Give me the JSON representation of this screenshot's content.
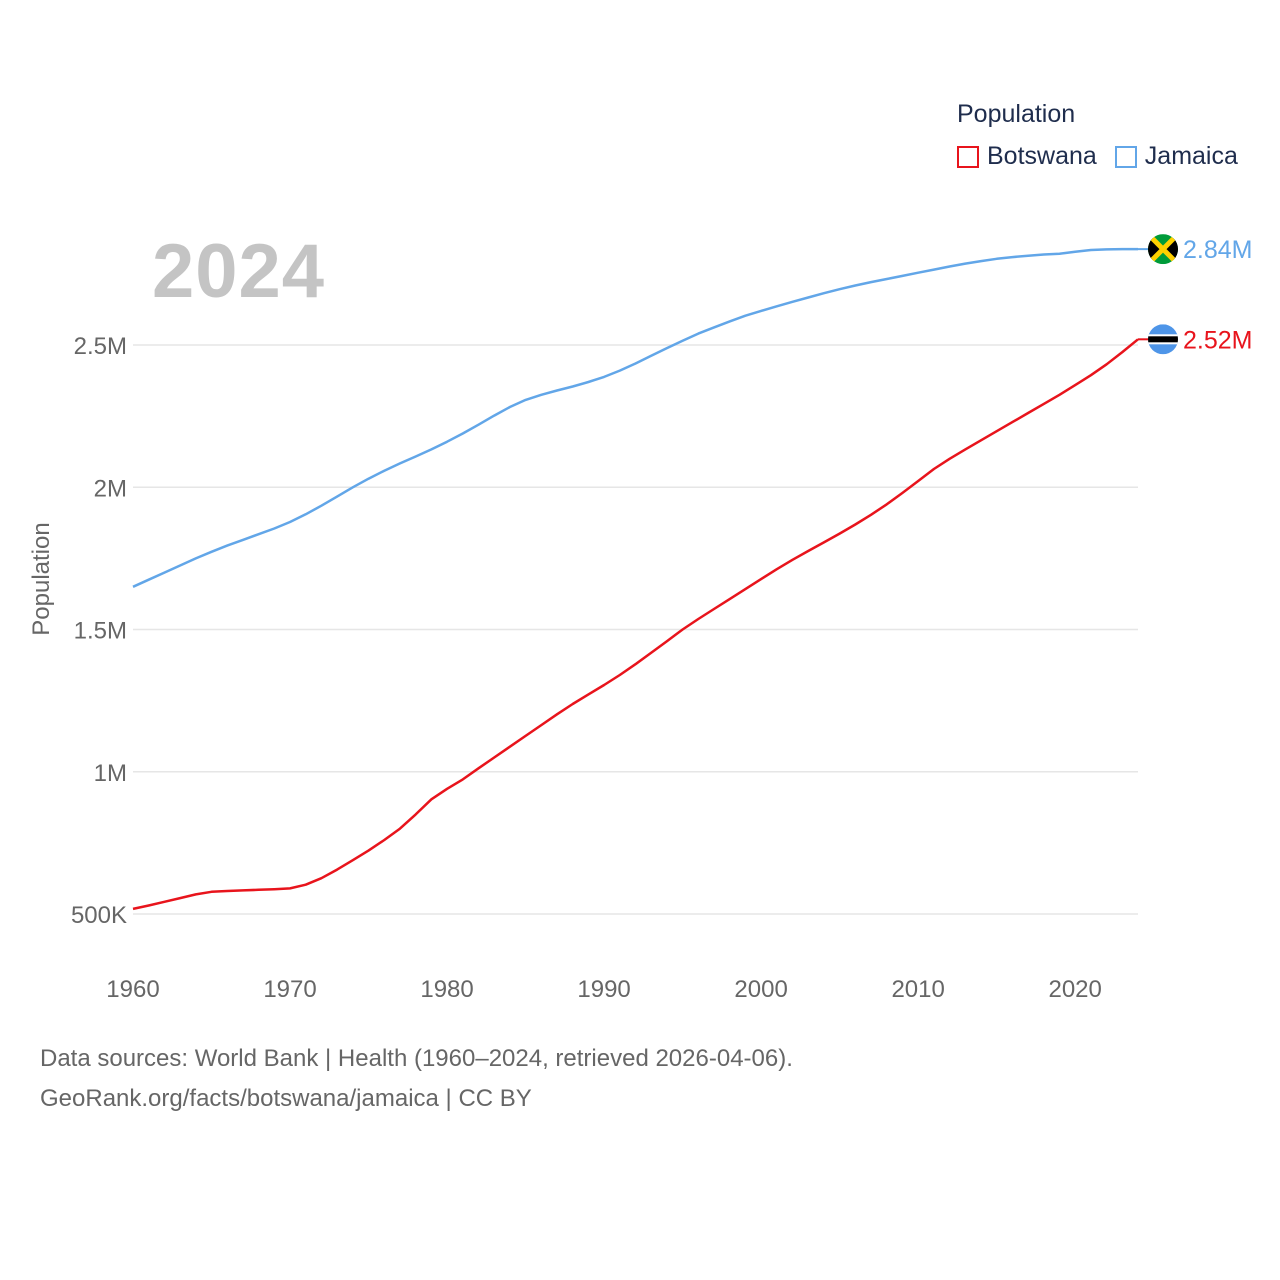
{
  "legend": {
    "title": "Population",
    "items": [
      {
        "name": "Botswana",
        "color": "#e8141c"
      },
      {
        "name": "Jamaica",
        "color": "#62a6e8"
      }
    ]
  },
  "year_label": "2024",
  "footer": {
    "line1": "Data sources: World Bank | Health (1960–2024, retrieved 2026-04-06).",
    "line2": "GeoRank.org/facts/botswana/jamaica | CC BY"
  },
  "chart_data": {
    "type": "line",
    "title": "Population",
    "xlabel": "",
    "ylabel": "Population",
    "xlim": [
      1960,
      2024
    ],
    "ylim": [
      300000,
      2900000
    ],
    "grid": true,
    "x_ticks": [
      1960,
      1970,
      1980,
      1990,
      2000,
      2010,
      2020
    ],
    "x_tick_labels": [
      "1960",
      "1970",
      "1980",
      "1990",
      "2000",
      "2010",
      "2020"
    ],
    "y_ticks": [
      500000,
      1000000,
      1500000,
      2000000,
      2500000
    ],
    "y_tick_labels": [
      "500K",
      "1M",
      "1.5M",
      "2M",
      "2.5M"
    ],
    "x": [
      1960,
      1961,
      1962,
      1963,
      1964,
      1965,
      1966,
      1967,
      1968,
      1969,
      1970,
      1971,
      1972,
      1973,
      1974,
      1975,
      1976,
      1977,
      1978,
      1979,
      1980,
      1981,
      1982,
      1983,
      1984,
      1985,
      1986,
      1987,
      1988,
      1989,
      1990,
      1991,
      1992,
      1993,
      1994,
      1995,
      1996,
      1997,
      1998,
      1999,
      2000,
      2001,
      2002,
      2003,
      2004,
      2005,
      2006,
      2007,
      2008,
      2009,
      2010,
      2011,
      2012,
      2013,
      2014,
      2015,
      2016,
      2017,
      2018,
      2019,
      2020,
      2021,
      2022,
      2023,
      2024
    ],
    "series": [
      {
        "name": "Botswana",
        "color": "#e8141c",
        "end_label": "2.52M",
        "values": [
          518000,
          530000,
          543000,
          556000,
          569000,
          578000,
          581000,
          583000,
          585000,
          587000,
          590000,
          603000,
          626000,
          656000,
          689000,
          723000,
          760000,
          800000,
          850000,
          903000,
          940000,
          973000,
          1012000,
          1050000,
          1088000,
          1126000,
          1164000,
          1202000,
          1238000,
          1272000,
          1305000,
          1340000,
          1378000,
          1418000,
          1459000,
          1500000,
          1537000,
          1572000,
          1607000,
          1642000,
          1677000,
          1712000,
          1745000,
          1776000,
          1806000,
          1837000,
          1869000,
          1903000,
          1940000,
          1980000,
          2022000,
          2064000,
          2100000,
          2133000,
          2165000,
          2197000,
          2229000,
          2261000,
          2293000,
          2325000,
          2359000,
          2394000,
          2432000,
          2475000,
          2520000
        ]
      },
      {
        "name": "Jamaica",
        "color": "#62a6e8",
        "end_label": "2.84M",
        "values": [
          1650000,
          1675000,
          1700000,
          1725000,
          1750000,
          1773000,
          1795000,
          1815000,
          1835000,
          1855000,
          1878000,
          1905000,
          1935000,
          1967000,
          2000000,
          2030000,
          2058000,
          2084000,
          2108000,
          2133000,
          2160000,
          2189000,
          2220000,
          2252000,
          2282000,
          2307000,
          2325000,
          2340000,
          2354000,
          2370000,
          2388000,
          2410000,
          2435000,
          2462000,
          2489000,
          2515000,
          2540000,
          2562000,
          2583000,
          2603000,
          2620000,
          2636000,
          2652000,
          2667000,
          2682000,
          2696000,
          2709000,
          2721000,
          2732000,
          2743000,
          2754000,
          2765000,
          2776000,
          2786000,
          2795000,
          2803000,
          2809000,
          2814000,
          2818000,
          2821000,
          2828000,
          2834000,
          2836000,
          2837000,
          2837000
        ]
      }
    ]
  }
}
